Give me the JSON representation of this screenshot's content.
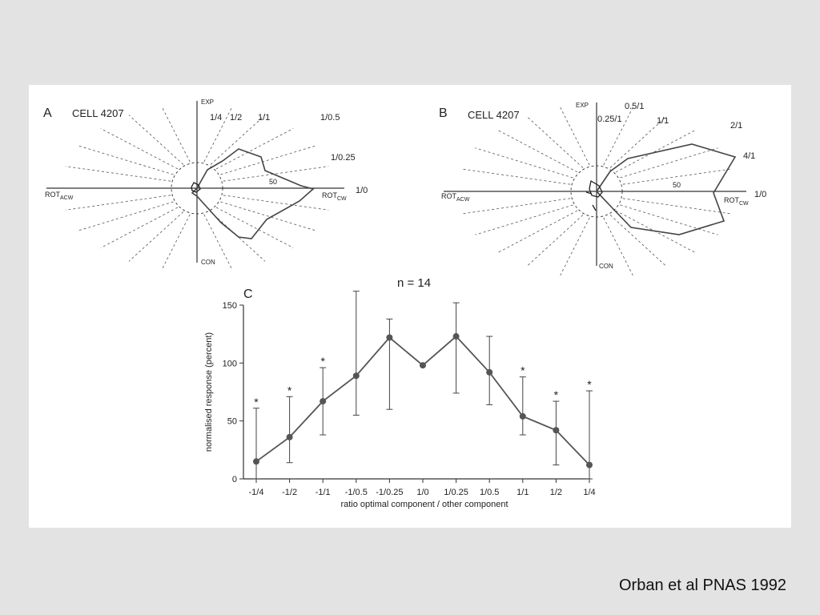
{
  "citation": "Orban et al PNAS 1992",
  "panels": {
    "A": {
      "letter": "A",
      "title": "CELL 4207",
      "axis_top": "EXP",
      "axis_bottom": "CON",
      "axis_left_main": "ROT",
      "axis_left_sub": "ACW",
      "axis_right_main": "ROT",
      "axis_right_sub": "CW",
      "scale_label": "50",
      "ray_labels": [
        "1/4",
        "1/2",
        "1/1",
        "1/0.5",
        "1/0.25",
        "1/0"
      ]
    },
    "B": {
      "letter": "B",
      "title": "CELL 4207",
      "axis_top": "EXP",
      "axis_bottom": "CON",
      "axis_left_main": "ROT",
      "axis_left_sub": "ACW",
      "axis_right_main": "ROT",
      "axis_right_sub": "CW",
      "scale_label": "50",
      "ray_labels": [
        "0.5/1",
        "0.25/1",
        "1/1",
        "2/1",
        "4/1",
        "1/0"
      ]
    },
    "C": {
      "letter": "C",
      "n_label": "n = 14"
    }
  },
  "chart_data": {
    "type": "line",
    "title": "n = 14",
    "xlabel": "ratio optimal component / other component",
    "ylabel": "normalised response (percent)",
    "ylim": [
      0,
      150
    ],
    "yticks": [
      0,
      50,
      100,
      150
    ],
    "categories": [
      "-1/4",
      "-1/2",
      "-1/1",
      "-1/0.5",
      "-1/0.25",
      "1/0",
      "1/0.25",
      "1/0.5",
      "1/1",
      "1/2",
      "1/4"
    ],
    "series": [
      {
        "values": [
          15,
          36,
          67,
          89,
          122,
          98,
          123,
          92,
          54,
          42,
          12
        ],
        "err_low": [
          0,
          14,
          38,
          55,
          60,
          98,
          74,
          64,
          38,
          12,
          0
        ],
        "err_high": [
          61,
          71,
          96,
          162,
          138,
          98,
          152,
          123,
          88,
          67,
          76
        ]
      }
    ],
    "significant": [
      true,
      true,
      true,
      false,
      false,
      false,
      false,
      false,
      true,
      true,
      true
    ],
    "significance_marker": "*",
    "grid": false,
    "legend": "none"
  }
}
